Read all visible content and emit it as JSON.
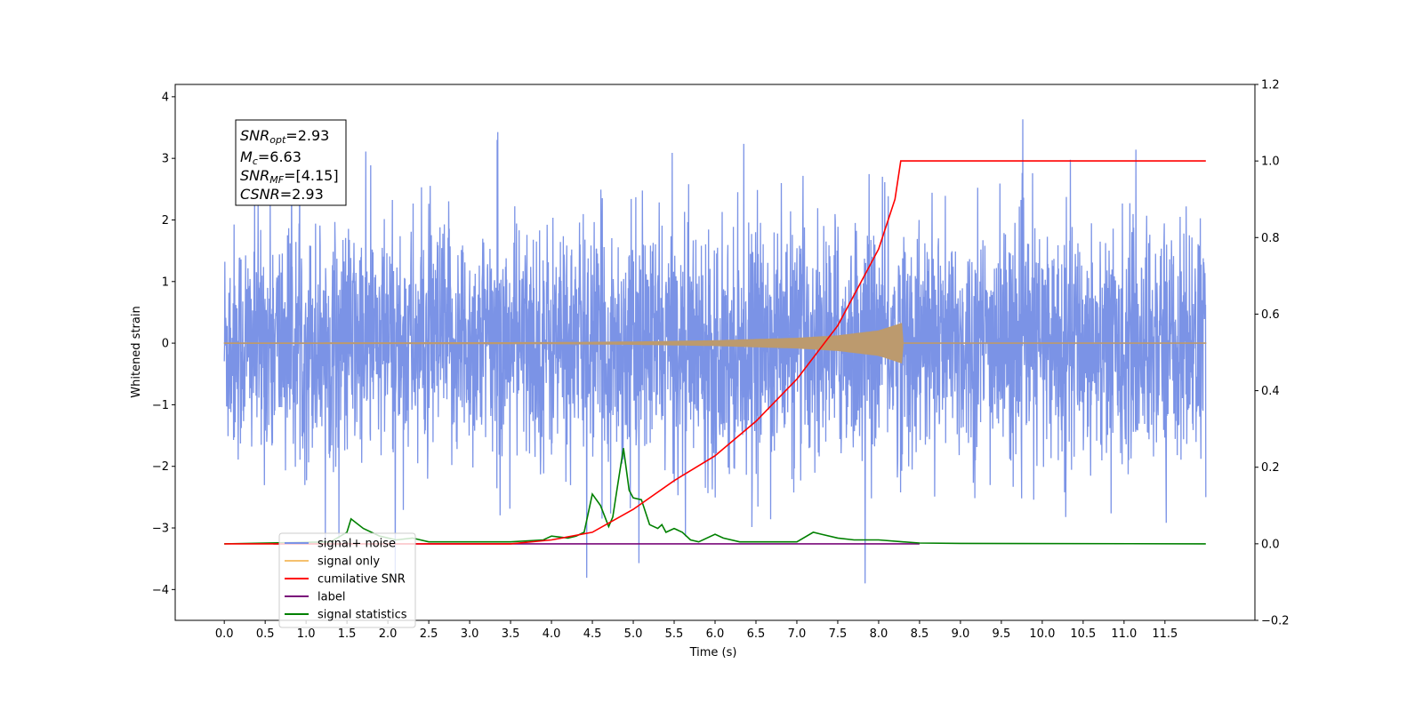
{
  "chart_data": {
    "type": "line",
    "xlabel": "Time (s)",
    "ylabel": "Whitened strain",
    "xlim": [
      -0.6,
      12.6
    ],
    "ylim": [
      -4.5,
      4.2
    ],
    "ylim_right": [
      -0.2,
      1.2
    ],
    "x_ticks": [
      "0.0",
      "0.5",
      "1.0",
      "1.5",
      "2.0",
      "2.5",
      "3.0",
      "3.5",
      "4.0",
      "4.5",
      "5.0",
      "5.5",
      "6.0",
      "6.5",
      "7.0",
      "7.5",
      "8.0",
      "8.5",
      "9.0",
      "9.5",
      "10.0",
      "10.5",
      "11.0",
      "11.5"
    ],
    "y_ticks": [
      "4",
      "3",
      "2",
      "1",
      "0",
      "−1",
      "−2",
      "−3",
      "−4"
    ],
    "y_right_ticks": [
      "1.2",
      "1.0",
      "0.8",
      "0.6",
      "0.4",
      "0.2",
      "0.0",
      "−0.2"
    ],
    "annotation": {
      "snr_opt": {
        "main": "SNR",
        "sub": "opt",
        "value": "=2.93"
      },
      "mc": {
        "main": "M",
        "sub": "c",
        "value": "=6.63"
      },
      "snr_mf": {
        "main": "SNR",
        "sub": "MF",
        "value": "=[4.15]"
      },
      "csnr": {
        "main": "CSNR",
        "value": "=2.93"
      }
    },
    "legend": {
      "placement": "lower-left",
      "entries": [
        "signal+ noise",
        "signal only",
        "cumilative SNR",
        "label",
        "signal statistics"
      ]
    },
    "colors": {
      "signal_noise": "#7b93e6",
      "signal_only": "#f5c06e",
      "signal_overlap": "#bc9a6e",
      "cumulative_snr": "#ff0000",
      "label": "#7a0a7a",
      "signal_statistics": "#008000"
    },
    "series": [
      {
        "name": "signal+ noise",
        "axis": "left",
        "description_range": [
          -3.9,
          3.8
        ],
        "x_range": [
          0.0,
          12.0
        ]
      },
      {
        "name": "signal only",
        "axis": "left",
        "x": [
          0.0,
          4.0,
          5.0,
          6.0,
          7.0,
          7.5,
          8.0,
          8.28,
          8.29,
          12.0
        ],
        "envelope": [
          0.005,
          0.01,
          0.02,
          0.04,
          0.08,
          0.12,
          0.2,
          0.32,
          0.005,
          0.005
        ]
      },
      {
        "name": "cumilative SNR",
        "axis": "right",
        "x": [
          0.0,
          3.5,
          4.0,
          4.5,
          5.0,
          5.5,
          6.0,
          6.5,
          7.0,
          7.5,
          8.0,
          8.2,
          8.27,
          12.0
        ],
        "y": [
          0.0,
          0.0,
          0.01,
          0.03,
          0.09,
          0.165,
          0.23,
          0.32,
          0.43,
          0.57,
          0.77,
          0.9,
          1.0,
          1.0
        ]
      },
      {
        "name": "label",
        "axis": "right",
        "x": [
          0.6,
          8.5
        ],
        "y": [
          0.0,
          0.0
        ]
      },
      {
        "name": "signal statistics",
        "axis": "right",
        "x": [
          0.0,
          1.3,
          1.5,
          1.55,
          1.7,
          1.9,
          2.1,
          2.3,
          2.5,
          3.0,
          3.5,
          3.9,
          4.0,
          4.2,
          4.3,
          4.4,
          4.45,
          4.5,
          4.6,
          4.7,
          4.75,
          4.8,
          4.88,
          4.95,
          5.0,
          5.1,
          5.2,
          5.3,
          5.35,
          5.4,
          5.5,
          5.6,
          5.7,
          5.8,
          6.0,
          6.1,
          6.3,
          6.5,
          7.0,
          7.2,
          7.3,
          7.5,
          7.7,
          8.0,
          8.3,
          8.5,
          9.0,
          12.0
        ],
        "y": [
          0.0,
          0.005,
          0.03,
          0.065,
          0.04,
          0.02,
          0.01,
          0.015,
          0.005,
          0.005,
          0.005,
          0.01,
          0.02,
          0.015,
          0.02,
          0.03,
          0.08,
          0.13,
          0.1,
          0.045,
          0.07,
          0.14,
          0.25,
          0.14,
          0.12,
          0.115,
          0.05,
          0.04,
          0.05,
          0.03,
          0.04,
          0.03,
          0.01,
          0.005,
          0.025,
          0.015,
          0.005,
          0.005,
          0.005,
          0.03,
          0.025,
          0.015,
          0.01,
          0.01,
          0.005,
          0.002,
          0.001,
          0.0
        ]
      }
    ]
  }
}
